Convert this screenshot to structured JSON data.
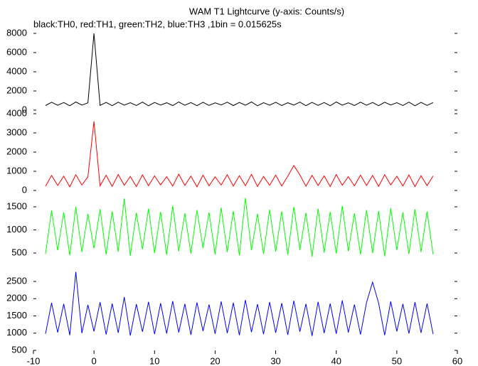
{
  "chart_data": {
    "type": "line",
    "title": "WAM T1 Lightcurve (y-axis: Counts/s)",
    "subtitle": "black:TH0, red:TH1, green:TH2, blue:TH3 ,1bin = 0.015625s",
    "xlim": [
      -10,
      60
    ],
    "xticks": [
      -10,
      0,
      10,
      20,
      30,
      40,
      50,
      60
    ],
    "x": [
      -8,
      -7,
      -6,
      -5,
      -4,
      -3,
      -2,
      -1,
      0,
      1,
      2,
      3,
      4,
      5,
      6,
      7,
      8,
      9,
      10,
      11,
      12,
      13,
      14,
      15,
      16,
      17,
      18,
      19,
      20,
      21,
      22,
      23,
      24,
      25,
      26,
      27,
      28,
      29,
      30,
      31,
      32,
      33,
      34,
      35,
      36,
      37,
      38,
      39,
      40,
      41,
      42,
      43,
      44,
      45,
      46,
      47,
      48,
      49,
      50,
      51,
      52,
      53,
      54,
      55,
      56
    ],
    "panels": [
      {
        "color": "#000000",
        "ylim": [
          0,
          8000
        ],
        "yticks": [
          0,
          2000,
          4000,
          6000,
          8000
        ],
        "values": [
          480,
          820,
          510,
          790,
          460,
          850,
          530,
          760,
          8000,
          500,
          810,
          470,
          830,
          520,
          780,
          490,
          840,
          460,
          800,
          530,
          770,
          480,
          850,
          510,
          790,
          470,
          820,
          500,
          760,
          540,
          830,
          480,
          800,
          510,
          850,
          460,
          780,
          520,
          820,
          490,
          770,
          530,
          840,
          470,
          810,
          500,
          790,
          460,
          850,
          520,
          760,
          480,
          830,
          510,
          800,
          470,
          820,
          540,
          780,
          490,
          840,
          460,
          810,
          500,
          790
        ]
      },
      {
        "color": "#ff0000",
        "ylim": [
          0,
          4000
        ],
        "yticks": [
          0,
          1000,
          2000,
          3000,
          4000
        ],
        "values": [
          220,
          780,
          260,
          740,
          190,
          820,
          280,
          710,
          3600,
          240,
          790,
          210,
          830,
          270,
          730,
          200,
          810,
          250,
          760,
          290,
          720,
          230,
          850,
          260,
          750,
          190,
          800,
          240,
          710,
          280,
          820,
          230,
          770,
          250,
          840,
          210,
          730,
          270,
          800,
          230,
          740,
          1300,
          810,
          220,
          790,
          260,
          760,
          200,
          830,
          270,
          720,
          240,
          800,
          260,
          780,
          210,
          820,
          290,
          740,
          230,
          810,
          200,
          770,
          250,
          760
        ]
      },
      {
        "color": "#00ff00",
        "ylim": [
          150,
          1800
        ],
        "yticks": [
          500,
          1000,
          1500
        ],
        "values": [
          480,
          1420,
          560,
          1380,
          450,
          1500,
          520,
          1350,
          600,
          1450,
          470,
          1400,
          530,
          1680,
          440,
          1370,
          580,
          1460,
          500,
          1390,
          460,
          1520,
          540,
          1360,
          490,
          1430,
          610,
          1380,
          470,
          1480,
          520,
          1410,
          450,
          1690,
          560,
          1350,
          480,
          1440,
          530,
          1400,
          460,
          1500,
          570,
          1370,
          420,
          1460,
          510,
          1390,
          490,
          1520,
          540,
          1360,
          470,
          1430,
          500,
          1410,
          430,
          1470,
          560,
          1380,
          480,
          1450,
          520,
          1400,
          470
        ]
      },
      {
        "color": "#0000ff",
        "ylim": [
          420,
          2800
        ],
        "yticks": [
          500,
          1000,
          1500,
          2000,
          2500
        ],
        "values": [
          980,
          1880,
          1020,
          1850,
          940,
          2780,
          1000,
          1820,
          1050,
          1900,
          960,
          1860,
          1010,
          2050,
          930,
          1840,
          1040,
          1910,
          970,
          1870,
          990,
          1930,
          1020,
          1850,
          950,
          1890,
          1060,
          1830,
          980,
          1920,
          1000,
          1880,
          940,
          1960,
          1030,
          1840,
          970,
          1900,
          1010,
          1870,
          950,
          1940,
          1040,
          1850,
          920,
          1910,
          1000,
          1860,
          980,
          1950,
          1020,
          1830,
          960,
          1890,
          2480,
          1870,
          940,
          1920,
          1050,
          1850,
          990,
          1900,
          1010,
          1860,
          970
        ]
      }
    ]
  }
}
